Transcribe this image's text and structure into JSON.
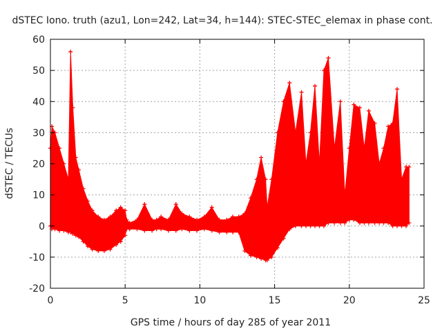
{
  "chart_data": {
    "type": "area",
    "title": "dSTEC Iono. truth (azu1, Lon=242, Lat=34, h=144): STEC-STEC_elemax in phase cont.",
    "xlabel": "GPS time / hours of day 285 of year 2011",
    "ylabel": "dSTEC  / TECUs",
    "xlim": [
      0,
      25
    ],
    "ylim": [
      -20,
      60
    ],
    "x_ticks": [
      0,
      5,
      10,
      15,
      20,
      25
    ],
    "y_ticks": [
      -20,
      -10,
      0,
      10,
      20,
      30,
      40,
      50,
      60
    ],
    "x_tick_labels": [
      "0",
      "5",
      "10",
      "15",
      "20",
      "25"
    ],
    "y_tick_labels": [
      "-20",
      "-10",
      "0",
      "10",
      "20",
      "30",
      "40",
      "50",
      "60"
    ],
    "grid": true,
    "legend": "none",
    "series_color": "#ff0000",
    "series": [
      {
        "x": [
          0.0,
          0.1,
          0.3,
          0.6,
          0.9,
          1.2,
          1.35,
          1.5,
          1.7,
          1.9,
          2.2,
          2.5,
          2.8,
          3.2,
          3.6,
          4.0,
          4.4,
          4.7,
          5.0,
          5.1,
          5.3,
          5.8,
          6.3,
          6.8,
          7.1,
          7.4,
          7.9,
          8.4,
          8.8,
          9.3,
          9.8,
          10.3,
          10.8,
          11.3,
          11.8,
          12.2,
          12.6,
          13.0,
          13.4,
          13.8,
          14.1,
          14.4,
          14.5,
          14.8,
          15.2,
          15.6,
          16.0,
          16.4,
          16.8,
          17.1,
          17.4,
          17.7,
          18.0,
          18.3,
          18.6,
          19.0,
          19.4,
          19.7,
          20.0,
          20.3,
          20.7,
          21.0,
          21.3,
          21.7,
          22.0,
          22.3,
          22.6,
          22.9,
          23.2,
          23.5,
          23.8,
          24.0
        ],
        "upper": [
          25,
          32,
          30,
          25,
          20,
          15,
          56,
          38,
          22,
          18,
          12,
          8,
          5,
          3,
          2,
          3,
          5,
          6,
          5,
          2,
          1,
          2,
          7,
          2,
          2,
          3,
          2,
          7,
          4,
          3,
          2,
          3,
          6,
          2,
          2,
          3,
          3,
          4,
          9,
          15,
          22,
          15,
          6,
          15,
          30,
          40,
          46,
          30,
          43,
          20,
          30,
          45,
          20,
          50,
          54,
          25,
          40,
          10,
          25,
          39,
          38,
          25,
          37,
          33,
          20,
          25,
          32,
          33,
          44,
          15,
          19,
          19
        ],
        "lower": [
          0,
          -1,
          -1,
          -1.5,
          -1.5,
          -2,
          -2,
          -2.5,
          -3,
          -3.5,
          -5,
          -6.5,
          -7.5,
          -8,
          -8,
          -7.5,
          -6,
          -5,
          -3,
          -1,
          -1,
          -1,
          -1.5,
          -1.5,
          -1,
          -1,
          -1.5,
          -1.5,
          -1,
          -1.5,
          -1.5,
          -1,
          -1.5,
          -2,
          -2,
          -2,
          -2,
          -8,
          -9.5,
          -10,
          -10.5,
          -11,
          -11,
          -10,
          -7,
          -4,
          -1,
          0,
          0,
          0,
          0,
          0,
          0,
          0,
          1,
          1,
          1,
          1,
          2,
          2,
          1,
          1,
          1,
          1,
          1,
          1,
          1,
          0,
          0,
          0,
          0,
          1
        ]
      }
    ]
  }
}
